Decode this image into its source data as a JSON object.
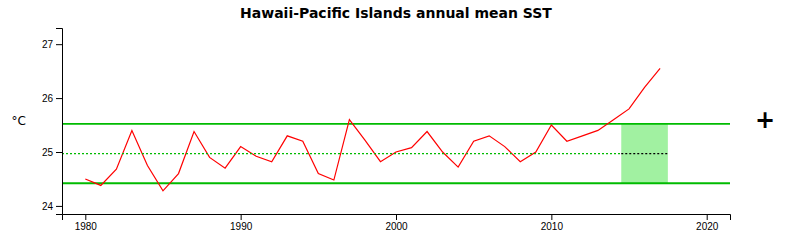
{
  "chart_data": {
    "type": "line",
    "title": "Hawaii-Pacific Islands annual mean SST",
    "ylabel": "°C",
    "x": [
      1980,
      1981,
      1982,
      1983,
      1984,
      1985,
      1986,
      1987,
      1988,
      1989,
      1990,
      1991,
      1992,
      1993,
      1994,
      1995,
      1996,
      1997,
      1998,
      1999,
      2000,
      2001,
      2002,
      2003,
      2004,
      2005,
      2006,
      2007,
      2008,
      2009,
      2010,
      2011,
      2012,
      2013,
      2014,
      2015,
      2016,
      2017
    ],
    "series": [
      {
        "color": "#ff0000",
        "line_style": "solid",
        "values": [
          24.5,
          24.38,
          24.68,
          25.4,
          24.75,
          24.28,
          24.6,
          25.38,
          24.9,
          24.7,
          25.1,
          24.92,
          24.82,
          25.3,
          25.2,
          24.6,
          24.48,
          25.6,
          25.22,
          24.82,
          25.0,
          25.08,
          25.38,
          25.0,
          24.72,
          25.2,
          25.3,
          25.1,
          24.82,
          25.0,
          25.5,
          25.2,
          25.3,
          25.4,
          25.6,
          25.8,
          26.2,
          26.55
        ]
      }
    ],
    "hlines": [
      {
        "value": 25.52,
        "color": "#00bb00",
        "line_style": "solid"
      },
      {
        "value": 24.42,
        "color": "#00bb00",
        "line_style": "solid"
      },
      {
        "value": 24.97,
        "x": [
          1978.5,
          2014.5
        ],
        "color": "#00bb00",
        "line_style": "dotted"
      },
      {
        "value": 24.97,
        "x": [
          2014.5,
          2017.5
        ],
        "color": "#000000",
        "line_style": "dotted"
      }
    ],
    "shade": {
      "x": [
        2014.5,
        2017.5
      ],
      "y": [
        24.42,
        25.52
      ],
      "color": "#90ee90"
    },
    "annotations": [
      {
        "text": "+"
      }
    ],
    "xlim": [
      1978.5,
      2021.5
    ],
    "xticks": [
      1980,
      1990,
      2000,
      2010,
      2020
    ],
    "ylim": [
      23.85,
      27.3
    ],
    "yticks": [
      24,
      25,
      26,
      27
    ],
    "grid": false
  }
}
